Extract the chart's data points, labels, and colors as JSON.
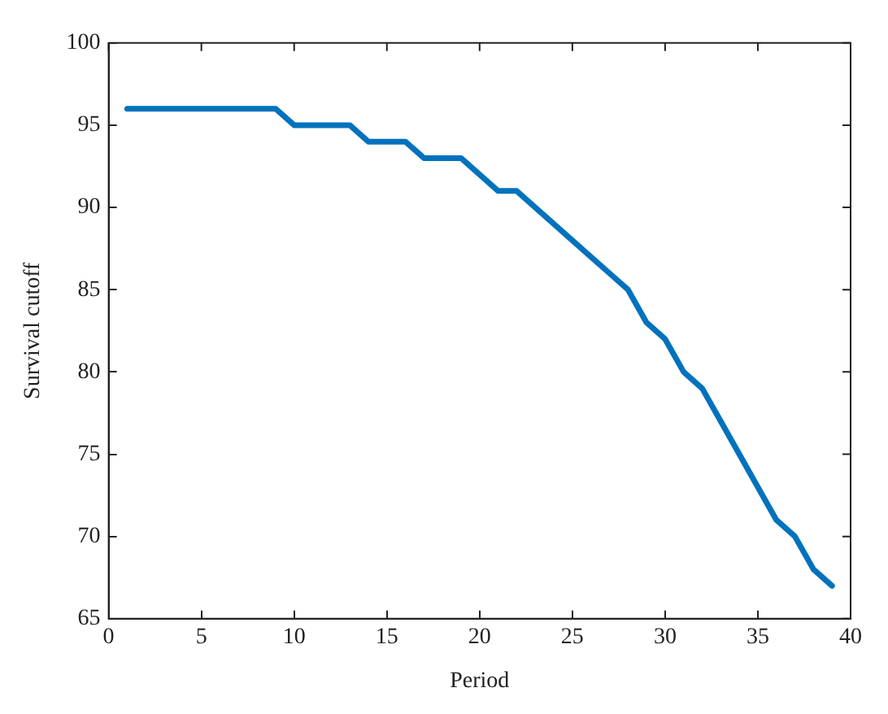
{
  "chart_data": {
    "type": "line",
    "xlabel": "Period",
    "ylabel": "Survival cutoff",
    "x": [
      1,
      2,
      3,
      4,
      5,
      6,
      7,
      8,
      9,
      10,
      11,
      12,
      13,
      14,
      15,
      16,
      17,
      18,
      19,
      20,
      21,
      22,
      23,
      24,
      25,
      26,
      27,
      28,
      29,
      30,
      31,
      32,
      33,
      34,
      35,
      36,
      37,
      38,
      39
    ],
    "series": [
      {
        "color": "#0072bd",
        "values": [
          96,
          96,
          96,
          96,
          96,
          96,
          96,
          96,
          96,
          95,
          95,
          95,
          95,
          94,
          94,
          94,
          93,
          93,
          93,
          92,
          91,
          91,
          90,
          89,
          88,
          87,
          86,
          85,
          83,
          82,
          80,
          79,
          77,
          75,
          73,
          71,
          70,
          68,
          67
        ]
      }
    ],
    "xlim": [
      0,
      40
    ],
    "xticks": [
      0,
      5,
      10,
      15,
      20,
      25,
      30,
      35,
      40
    ],
    "ylim": [
      65,
      100
    ],
    "yticks": [
      65,
      70,
      75,
      80,
      85,
      90,
      95,
      100
    ],
    "grid": false,
    "legend": false,
    "marker": "none",
    "line_style": "solid"
  }
}
